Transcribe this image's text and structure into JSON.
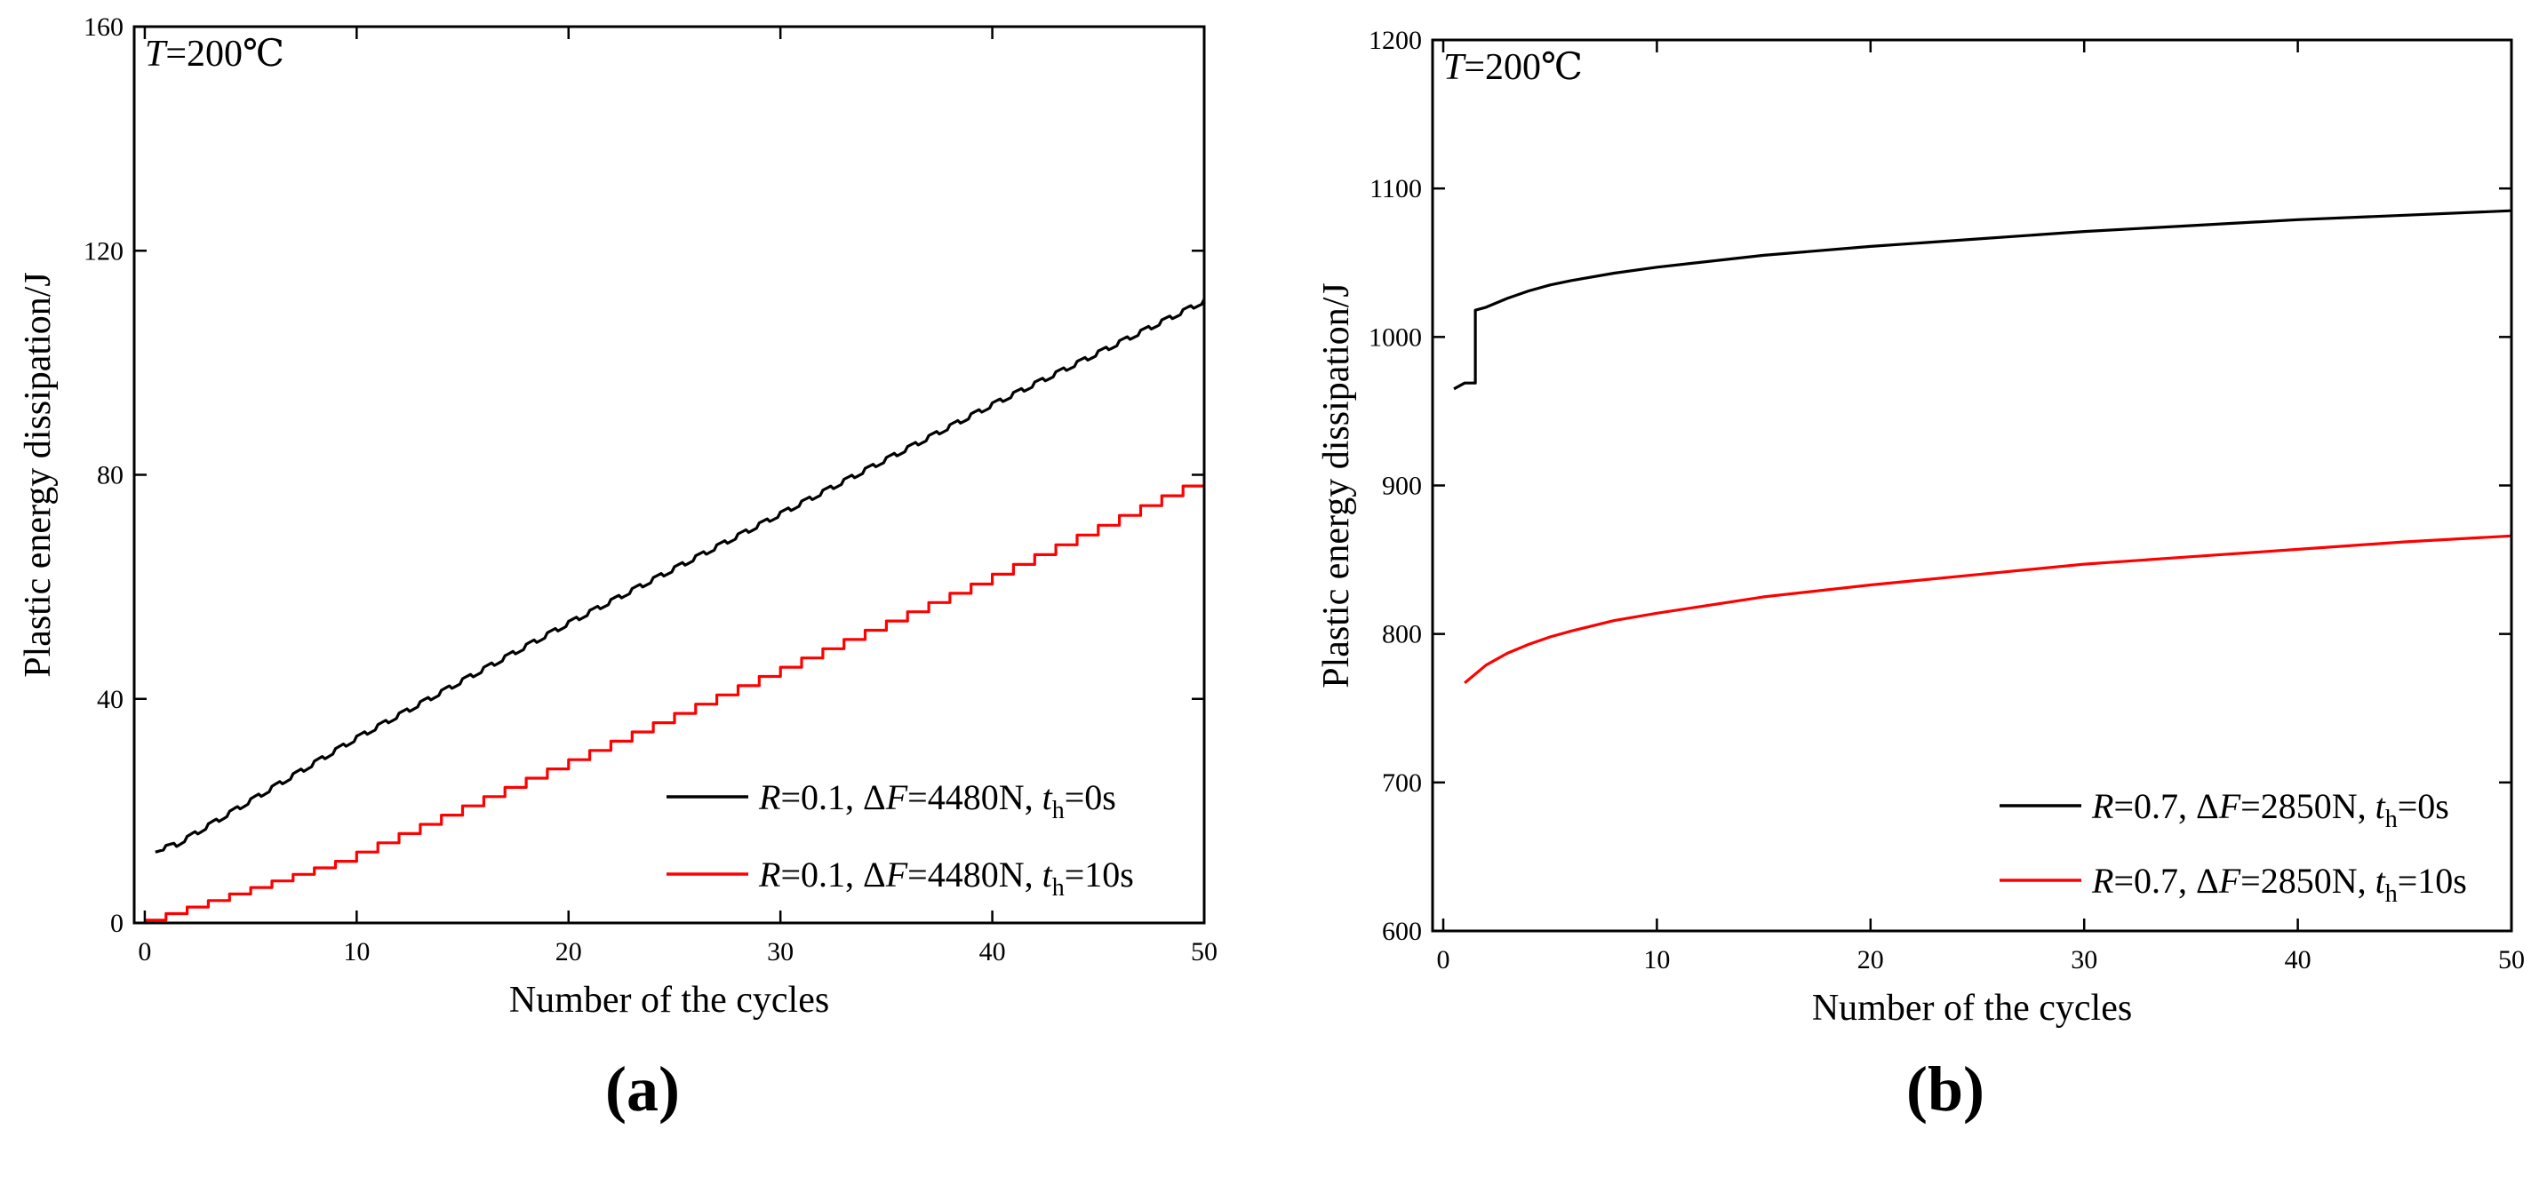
{
  "chart_data": [
    {
      "type": "line",
      "panel_label": "(a)",
      "annotation": {
        "var": "T",
        "value": "=200℃"
      },
      "xlabel": "Number of the cycles",
      "ylabel": "Plastic energy dissipation/J",
      "xlim": [
        -0.5,
        50
      ],
      "ylim": [
        0,
        160
      ],
      "xticks": [
        0,
        10,
        20,
        30,
        40,
        50
      ],
      "yticks": [
        0,
        40,
        80,
        120,
        160
      ],
      "legend_position": "bottom-right",
      "series": [
        {
          "name": "R=0.1, ΔF=4480N, th=0s",
          "legend": {
            "r": "R",
            "r_val": "=0.1, Δ",
            "f": "F",
            "f_val": "=4480N, ",
            "t": "t",
            "t_sub": "h",
            "t_val": "=0s"
          },
          "color": "#000000",
          "step_style": "ripple",
          "x": [
            0.5,
            1.5,
            10,
            20,
            30,
            40,
            50
          ],
          "y": [
            13,
            14,
            33,
            53.5,
            73,
            92.5,
            111
          ]
        },
        {
          "name": "R=0.1, ΔF=4480N, th=10s",
          "legend": {
            "r": "R",
            "r_val": "=0.1, Δ",
            "f": "F",
            "f_val": "=4480N, ",
            "t": "t",
            "t_sub": "h",
            "t_val": "=10s"
          },
          "color": "#ff0000",
          "step_style": "staircase",
          "x": [
            0,
            1,
            10,
            20,
            30,
            40,
            50
          ],
          "y": [
            0,
            0.5,
            11,
            27.5,
            44,
            60.5,
            78
          ]
        }
      ]
    },
    {
      "type": "line",
      "panel_label": "(b)",
      "annotation": {
        "var": "T",
        "value": "=200℃"
      },
      "xlabel": "Number of the cycles",
      "ylabel": "Plastic energy dissipation/J",
      "xlim": [
        -0.5,
        50
      ],
      "ylim": [
        600,
        1200
      ],
      "xticks": [
        0,
        10,
        20,
        30,
        40,
        50
      ],
      "yticks": [
        600,
        700,
        800,
        900,
        1000,
        1100,
        1200
      ],
      "legend_position": "bottom-right",
      "series": [
        {
          "name": "R=0.7, ΔF=2850N, th=0s",
          "legend": {
            "r": "R",
            "r_val": "=0.7, Δ",
            "f": "F",
            "f_val": "=2850N, ",
            "t": "t",
            "t_sub": "h",
            "t_val": "=0s"
          },
          "color": "#000000",
          "x": [
            0.5,
            1,
            1.5,
            1.5,
            2,
            3,
            4,
            5,
            6,
            8,
            10,
            15,
            20,
            25,
            30,
            35,
            40,
            45,
            50
          ],
          "y": [
            965,
            969,
            969,
            1018,
            1020,
            1026,
            1031,
            1035,
            1038,
            1043,
            1047,
            1055,
            1061,
            1066,
            1071,
            1075,
            1079,
            1082,
            1085
          ]
        },
        {
          "name": "R=0.7, ΔF=2850N, th=10s",
          "legend": {
            "r": "R",
            "r_val": "=0.7, Δ",
            "f": "F",
            "f_val": "=2850N, ",
            "t": "t",
            "t_sub": "h",
            "t_val": "=10s"
          },
          "color": "#ff0000",
          "x": [
            1,
            2,
            3,
            4,
            5,
            6,
            8,
            10,
            15,
            20,
            25,
            30,
            35,
            40,
            45,
            50
          ],
          "y": [
            767,
            779,
            787,
            793,
            798,
            802,
            809,
            814,
            825,
            833,
            840,
            847,
            852,
            857,
            862,
            866
          ]
        }
      ]
    }
  ]
}
